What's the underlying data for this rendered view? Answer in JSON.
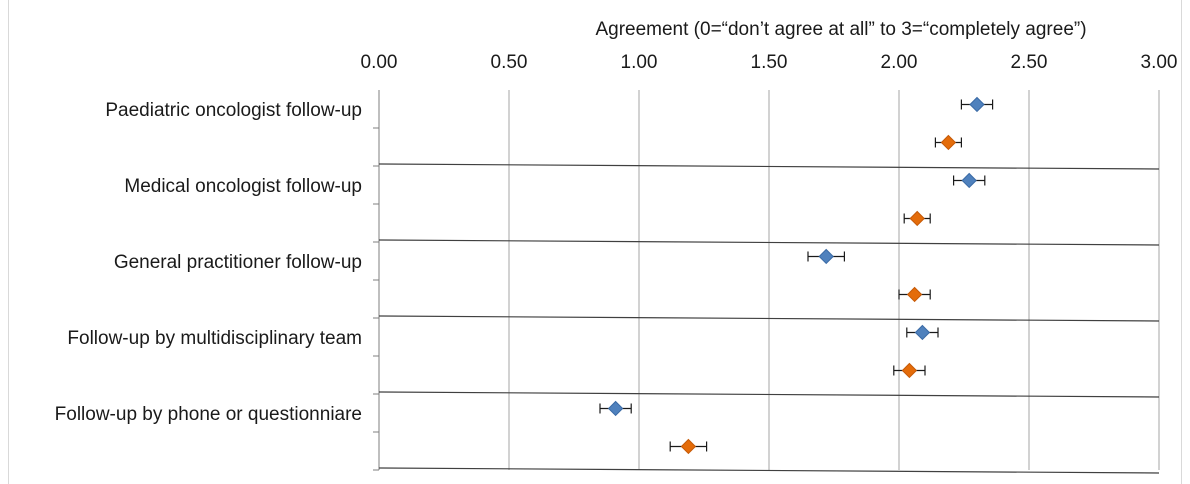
{
  "chart_data": {
    "type": "scatter",
    "orientation": "horizontal",
    "xlabel": "Agreement (0=“don’t agree at all” to 3=“completely agree”)",
    "xlim": [
      0,
      3
    ],
    "x_ticks": [
      "0.00",
      "0.50",
      "1.00",
      "1.50",
      "2.00",
      "2.50",
      "3.00"
    ],
    "x_tick_values": [
      0,
      0.5,
      1,
      1.5,
      2,
      2.5,
      3
    ],
    "grid": true,
    "categories": [
      "Paediatric oncologist follow-up",
      "Medical oncologist follow-up",
      "General practitioner follow-up",
      "Follow-up by multidisciplinary team",
      "Follow-up by phone or questionniare"
    ],
    "series": [
      {
        "color": "#4f81bd",
        "marker": "diamond",
        "values": [
          2.3,
          2.27,
          1.72,
          2.09,
          0.91
        ],
        "error": [
          0.06,
          0.06,
          0.07,
          0.06,
          0.06
        ]
      },
      {
        "color": "#e46c0a",
        "marker": "diamond",
        "values": [
          2.19,
          2.07,
          2.06,
          2.04,
          1.19
        ],
        "error": [
          0.05,
          0.05,
          0.06,
          0.06,
          0.07
        ]
      }
    ],
    "legend": "none"
  }
}
